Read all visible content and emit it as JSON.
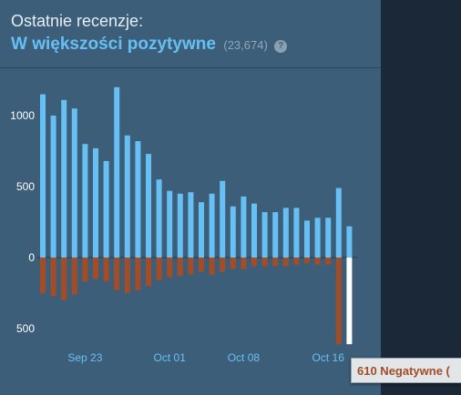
{
  "reviews": {
    "heading": "Ostatnie recenzje:",
    "summary_label": "W większości pozytywne",
    "summary_count": "(23,674)",
    "help_glyph": "?"
  },
  "tooltip": {
    "text": "610 Negatywne ("
  },
  "chart_data": {
    "type": "bar",
    "positive_color": "#66c0f4",
    "negative_color": "#a34c25",
    "highlight_color": "#ffffff",
    "y_tick_labels": [
      {
        "value": 1000,
        "label": "1000"
      },
      {
        "value": 500,
        "label": "500"
      },
      {
        "value": 0,
        "label": "0"
      },
      {
        "value": -500,
        "label": "500"
      }
    ],
    "x_tick_labels": [
      {
        "day_index": 4,
        "label": "Sep 23"
      },
      {
        "day_index": 12,
        "label": "Oct 01"
      },
      {
        "day_index": 19,
        "label": "Oct 08"
      },
      {
        "day_index": 27,
        "label": "Oct 16"
      }
    ],
    "ylim": [
      -600,
      1250
    ],
    "series": [
      {
        "name": "Pozytywne",
        "values": [
          1150,
          1000,
          1110,
          1050,
          800,
          770,
          680,
          1200,
          860,
          820,
          730,
          550,
          470,
          450,
          460,
          390,
          450,
          540,
          360,
          430,
          380,
          320,
          320,
          350,
          350,
          260,
          280,
          280,
          490,
          220
        ]
      },
      {
        "name": "Negatywne",
        "values": [
          -250,
          -270,
          -300,
          -260,
          -170,
          -150,
          -170,
          -230,
          -250,
          -230,
          -200,
          -160,
          -140,
          -130,
          -120,
          -100,
          -120,
          -100,
          -80,
          -80,
          -60,
          -60,
          -60,
          -60,
          -50,
          -40,
          -50,
          -50,
          -610,
          -610
        ]
      }
    ],
    "highlighted_negative_index": 29
  }
}
